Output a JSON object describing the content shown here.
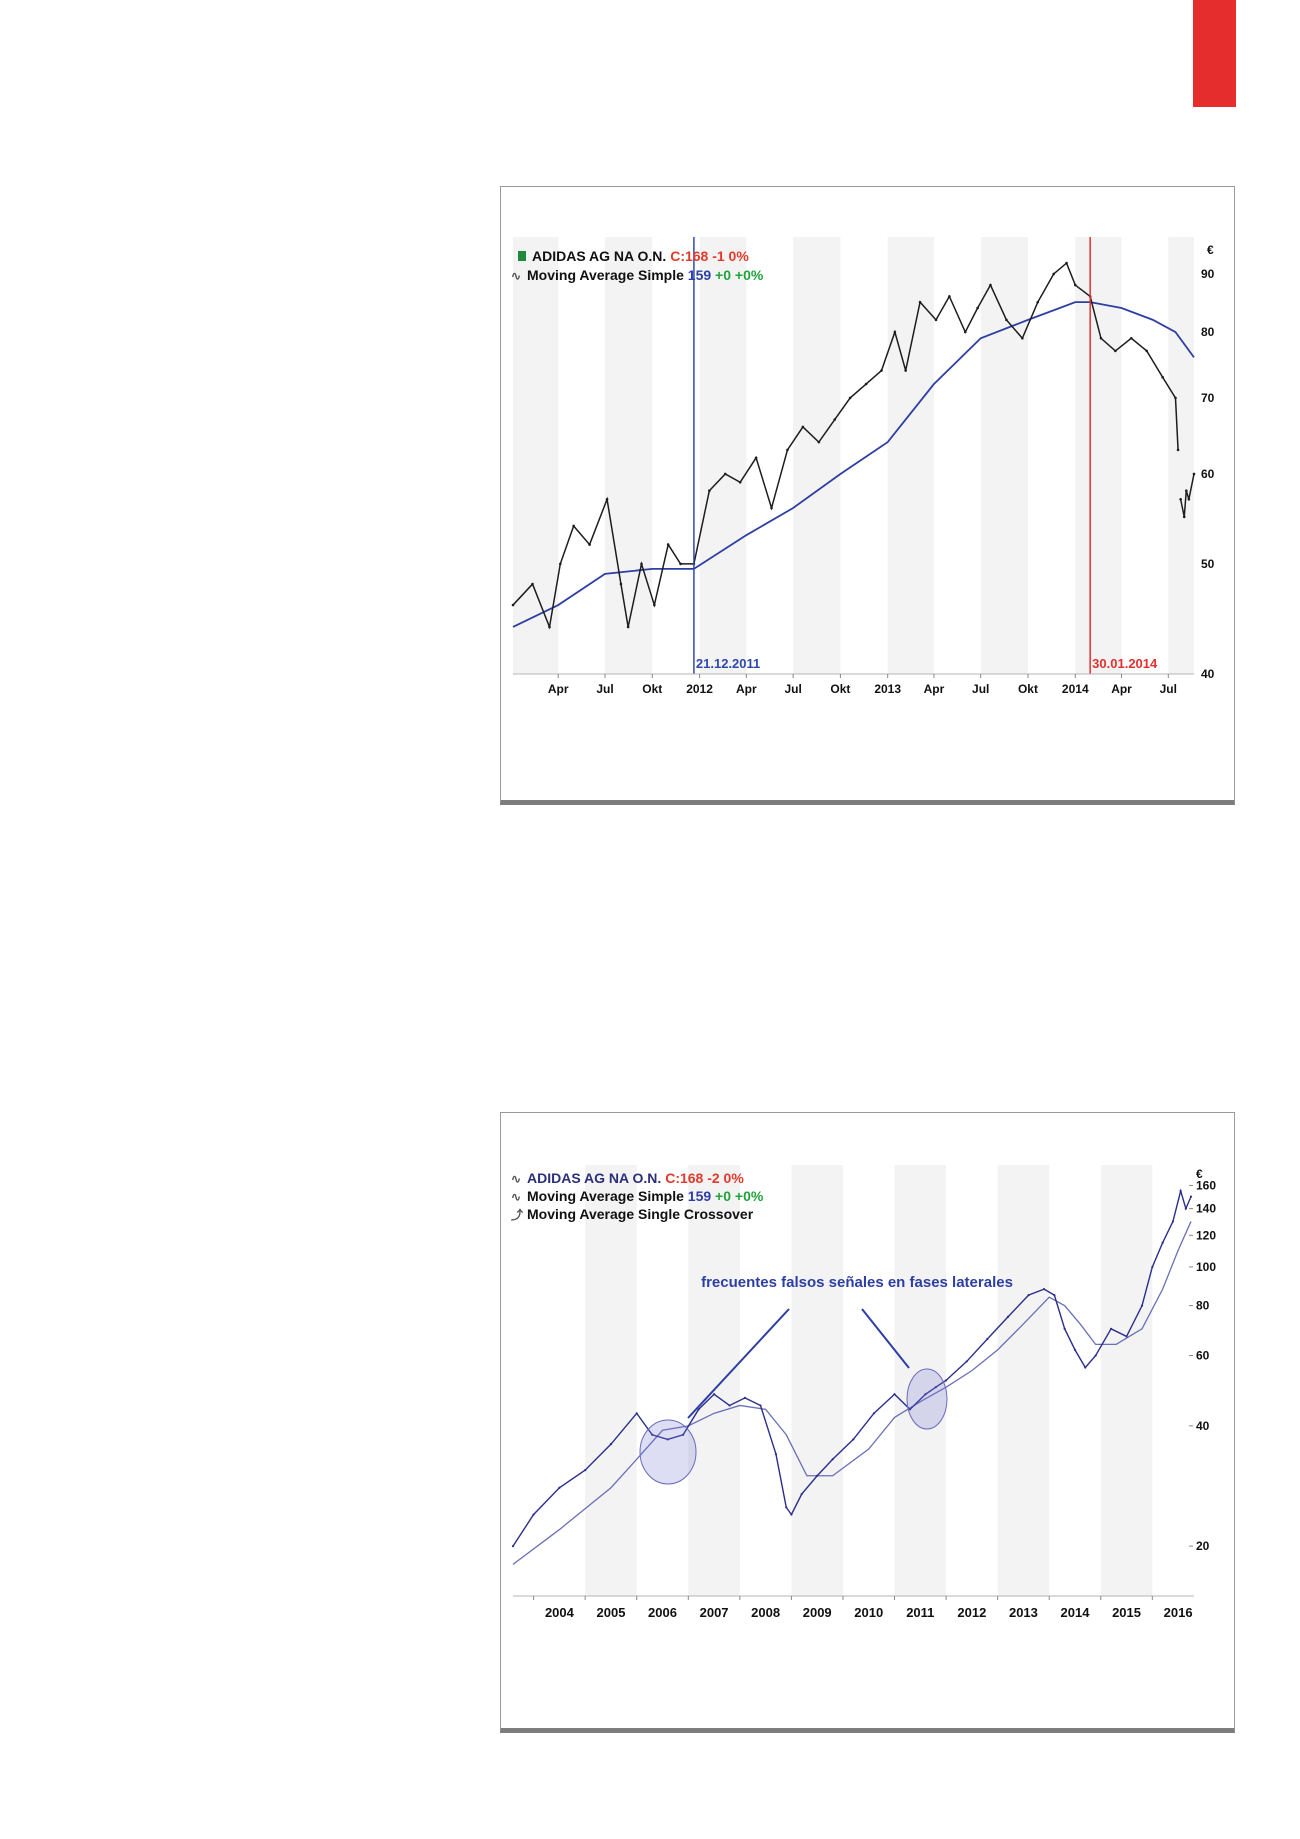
{
  "chart_data": [
    {
      "type": "line",
      "currency": "€",
      "legend": [
        {
          "name": "ADIDAS AG NA O.N.",
          "value_text": "C:168 -1 0%",
          "color": "#e23a2c"
        },
        {
          "name": "Moving Average Simple",
          "value_text": "159",
          "change_text": "+0 +0%",
          "color": "#2e3fa4"
        }
      ],
      "x_ticks": [
        "Apr",
        "Jul",
        "Okt",
        "2012",
        "Apr",
        "Jul",
        "Okt",
        "2013",
        "Apr",
        "Jul",
        "Okt",
        "2014",
        "Apr",
        "Jul"
      ],
      "y_ticks": [
        40,
        50,
        60,
        70,
        80,
        90
      ],
      "y_scale": "log",
      "ylim": [
        40,
        97
      ],
      "xlim": [
        "2011-01-03",
        "2014-08-20"
      ],
      "markers": [
        {
          "date": "2011-12-21",
          "label": "21.12.2011",
          "color": "#2e4ab0"
        },
        {
          "date": "2014-01-30",
          "label": "30.01.2014",
          "color": "#e53030"
        }
      ],
      "series": [
        {
          "name": "ADIDAS AG NA O.N.",
          "x": [
            "2011-01-03",
            "2011-02-10",
            "2011-03-15",
            "2011-04-05",
            "2011-05-01",
            "2011-06-01",
            "2011-07-05",
            "2011-08-01",
            "2011-08-15",
            "2011-09-10",
            "2011-10-05",
            "2011-11-01",
            "2011-11-25",
            "2011-12-21",
            "2012-01-20",
            "2012-02-20",
            "2012-03-20",
            "2012-04-20",
            "2012-05-20",
            "2012-06-20",
            "2012-07-20",
            "2012-08-20",
            "2012-09-20",
            "2012-10-20",
            "2012-11-20",
            "2012-12-20",
            "2013-01-15",
            "2013-02-05",
            "2013-03-05",
            "2013-04-05",
            "2013-05-01",
            "2013-06-01",
            "2013-06-25",
            "2013-07-20",
            "2013-08-20",
            "2013-09-20",
            "2013-10-20",
            "2013-11-20",
            "2013-12-15",
            "2014-01-01",
            "2014-01-30",
            "2014-02-20",
            "2014-03-20",
            "2014-04-20",
            "2014-05-20",
            "2014-06-20",
            "2014-07-15",
            "2014-07-20",
            "2014-07-25",
            "2014-08-01",
            "2014-08-05",
            "2014-08-10",
            "2014-08-20"
          ],
          "values": [
            46,
            48,
            44,
            50,
            54,
            52,
            57,
            48,
            44,
            50,
            46,
            52,
            50,
            50,
            58,
            60,
            59,
            62,
            56,
            63,
            66,
            64,
            67,
            70,
            72,
            74,
            80,
            74,
            85,
            82,
            86,
            80,
            84,
            88,
            82,
            79,
            85,
            90,
            92,
            88,
            86,
            79,
            77,
            79,
            77,
            73,
            70,
            63,
            57,
            55,
            58,
            57,
            60
          ]
        },
        {
          "name": "Moving Average Simple",
          "x": [
            "2011-01-03",
            "2011-04-01",
            "2011-07-01",
            "2011-10-01",
            "2011-12-21",
            "2012-04-01",
            "2012-07-01",
            "2012-10-01",
            "2013-01-01",
            "2013-04-01",
            "2013-07-01",
            "2013-10-01",
            "2014-01-01",
            "2014-01-30",
            "2014-04-01",
            "2014-06-01",
            "2014-07-15",
            "2014-08-20"
          ],
          "values": [
            44,
            46,
            49,
            49.5,
            49.5,
            53,
            56,
            60,
            64,
            72,
            79,
            82,
            85,
            85,
            84,
            82,
            80,
            76
          ]
        }
      ]
    },
    {
      "type": "line",
      "currency": "€",
      "legend": [
        {
          "name": "ADIDAS AG NA O.N.",
          "value_text": "C:168 -2 0%",
          "color": "#e23a2c"
        },
        {
          "name": "Moving Average Simple",
          "value_text": "159",
          "change_text": "+0 +0%",
          "color": "#2e3fa4"
        },
        {
          "name": "Moving Average Single Crossover"
        }
      ],
      "annotation": "frecuentes falsos señales en fases laterales",
      "x_ticks": [
        "2004",
        "2005",
        "2006",
        "2007",
        "2008",
        "2009",
        "2010",
        "2011",
        "2012",
        "2013",
        "2014",
        "2015",
        "2016"
      ],
      "y_ticks": [
        20,
        40,
        60,
        80,
        100,
        120,
        140,
        160
      ],
      "y_scale": "log",
      "ylim": [
        15,
        180
      ],
      "xlim": [
        2003.6,
        2016.75
      ],
      "series": [
        {
          "name": "ADIDAS AG NA O.N.",
          "x": [
            2003.6,
            2004.0,
            2004.5,
            2005.0,
            2005.5,
            2006.0,
            2006.3,
            2006.6,
            2006.9,
            2007.2,
            2007.5,
            2007.8,
            2008.1,
            2008.4,
            2008.7,
            2008.9,
            2009.0,
            2009.2,
            2009.5,
            2009.8,
            2010.2,
            2010.6,
            2011.0,
            2011.3,
            2011.6,
            2011.8,
            2012.0,
            2012.4,
            2012.8,
            2013.2,
            2013.6,
            2013.9,
            2014.1,
            2014.3,
            2014.5,
            2014.7,
            2014.9,
            2015.2,
            2015.5,
            2015.8,
            2016.0,
            2016.2,
            2016.4,
            2016.55,
            2016.65,
            2016.75
          ],
          "values": [
            20,
            24,
            28,
            31,
            36,
            43,
            38,
            37,
            38,
            44,
            48,
            45,
            47,
            45,
            34,
            25,
            24,
            27,
            30,
            33,
            37,
            43,
            48,
            44,
            48,
            50,
            52,
            58,
            66,
            75,
            85,
            88,
            85,
            70,
            62,
            56,
            60,
            70,
            67,
            80,
            100,
            115,
            130,
            155,
            140,
            150
          ]
        },
        {
          "name": "Moving Average Simple",
          "x": [
            2003.6,
            2004.5,
            2005.5,
            2006.0,
            2006.5,
            2007.0,
            2007.5,
            2008.0,
            2008.5,
            2008.9,
            2009.3,
            2009.8,
            2010.5,
            2011.0,
            2011.5,
            2012.0,
            2012.5,
            2013.0,
            2013.5,
            2014.0,
            2014.3,
            2014.6,
            2014.9,
            2015.3,
            2015.8,
            2016.2,
            2016.5,
            2016.75
          ],
          "values": [
            18,
            22,
            28,
            33,
            39,
            40,
            43,
            45,
            44,
            38,
            30,
            30,
            35,
            42,
            46,
            50,
            55,
            62,
            72,
            84,
            80,
            72,
            64,
            64,
            70,
            88,
            110,
            130
          ]
        }
      ]
    }
  ]
}
